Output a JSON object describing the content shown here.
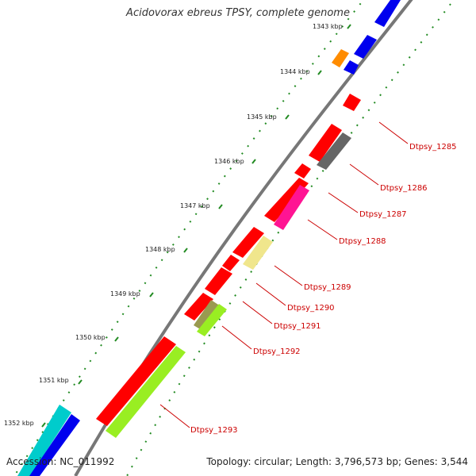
{
  "map": {
    "title": "Acidovorax ebreus TPSY, complete genome",
    "accession": "Accession: NC_011992",
    "summary": "Topology: circular; Length: 3,796,573 bp; Genes: 3,544",
    "ticks": [
      "1343 kbp",
      "1344 kbp",
      "1345 kbp",
      "1346 kbp",
      "1347 kbp",
      "1348 kbp",
      "1349 kbp",
      "1350 kbp",
      "1351 kbp",
      "1352 kbp"
    ],
    "gene_labels": [
      "Dtpsy_1285",
      "Dtpsy_1286",
      "Dtpsy_1287",
      "Dtpsy_1288",
      "Dtpsy_1289",
      "Dtpsy_1290",
      "Dtpsy_1291",
      "Dtpsy_1292",
      "Dtpsy_1293"
    ],
    "colors": {
      "backbone": "#777777",
      "dots": "#228b22",
      "label_red": "#cc0000",
      "red": "#ff0000",
      "blue": "#0000ee",
      "orange": "#ff8c00",
      "gray": "#666666",
      "magenta": "#ff1493",
      "khaki": "#f0e68c",
      "olive": "#9a9a50",
      "lime": "#99ee22",
      "cyan": "#00cccc"
    }
  }
}
